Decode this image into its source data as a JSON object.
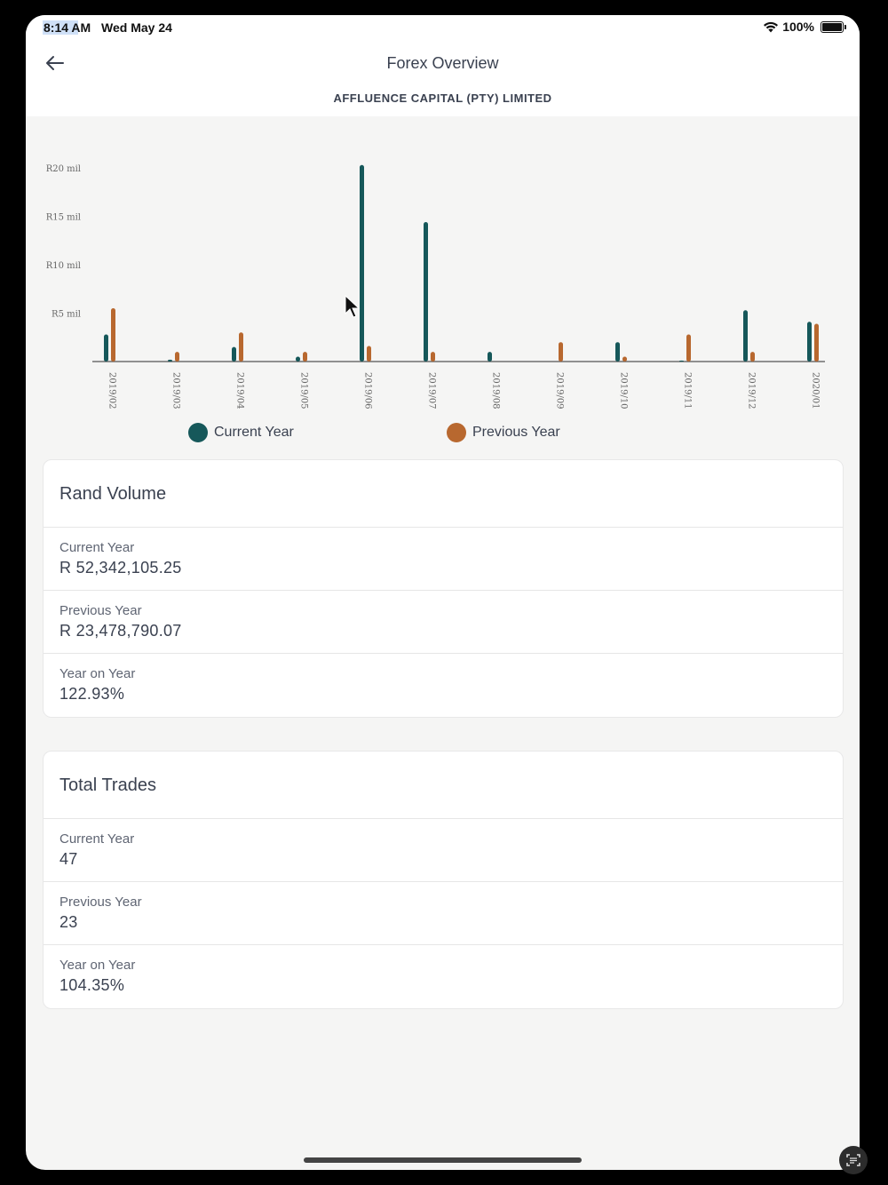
{
  "status": {
    "time": "8:14 AM",
    "date": "Wed May 24",
    "battery": "100%"
  },
  "header": {
    "title": "Forex Overview",
    "subtitle": "AFFLUENCE CAPITAL (PTY) LIMITED",
    "back_icon": "arrow-left-icon"
  },
  "colors": {
    "current": "#16585a",
    "previous": "#b8682f"
  },
  "chart_data": {
    "type": "bar",
    "categories": [
      "2019/02",
      "2019/03",
      "2019/04",
      "2019/05",
      "2019/06",
      "2019/07",
      "2019/08",
      "2019/09",
      "2019/10",
      "2019/11",
      "2019/12",
      "2020/01"
    ],
    "series": [
      {
        "name": "Current Year",
        "values": [
          2.8,
          0.2,
          1.5,
          0.5,
          20.3,
          14.4,
          1.0,
          0,
          2.0,
          0.1,
          5.3,
          4.1
        ]
      },
      {
        "name": "Previous Year",
        "values": [
          5.5,
          1.0,
          3.0,
          1.0,
          1.6,
          1.0,
          0,
          2.0,
          0.5,
          2.8,
          1.0,
          3.9
        ]
      }
    ],
    "yticks": [
      {
        "value": 5,
        "label": "R5 mil"
      },
      {
        "value": 10,
        "label": "R10 mil"
      },
      {
        "value": 15,
        "label": "R15 mil"
      },
      {
        "value": 20,
        "label": "R20 mil"
      }
    ],
    "ylim": [
      0,
      20
    ],
    "legend": [
      "Current Year",
      "Previous Year"
    ],
    "legend_position": "bottom"
  },
  "rand_volume": {
    "title": "Rand Volume",
    "rows": [
      {
        "label": "Current Year",
        "value": "R 52,342,105.25"
      },
      {
        "label": "Previous Year",
        "value": "R 23,478,790.07"
      },
      {
        "label": "Year on Year",
        "value": "122.93%"
      }
    ]
  },
  "total_trades": {
    "title": "Total Trades",
    "rows": [
      {
        "label": "Current Year",
        "value": "47"
      },
      {
        "label": "Previous Year",
        "value": "23"
      },
      {
        "label": "Year on Year",
        "value": "104.35%"
      }
    ]
  }
}
